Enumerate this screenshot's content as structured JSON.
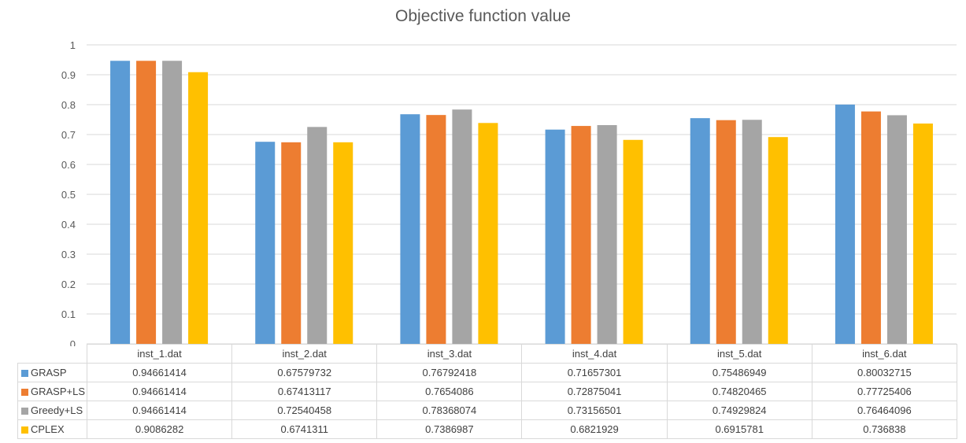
{
  "chart_data": {
    "type": "bar",
    "title": "Objective function value",
    "xlabel": "",
    "ylabel": "",
    "ylim": [
      0,
      1
    ],
    "yticks": [
      "0",
      "0.1",
      "0.2",
      "0.3",
      "0.4",
      "0.5",
      "0.6",
      "0.7",
      "0.8",
      "0.9",
      "1"
    ],
    "grid": true,
    "legend": "data-table",
    "categories": [
      "inst_1.dat",
      "inst_2.dat",
      "inst_3.dat",
      "inst_4.dat",
      "inst_5.dat",
      "inst_6.dat"
    ],
    "series": [
      {
        "name": "GRASP",
        "color": "#5b9bd5",
        "values": [
          0.94661414,
          0.67579732,
          0.76792418,
          0.71657301,
          0.75486949,
          0.80032715
        ],
        "labels": [
          "0.94661414",
          "0.67579732",
          "0.76792418",
          "0.71657301",
          "0.75486949",
          "0.80032715"
        ]
      },
      {
        "name": "GRASP+LS",
        "color": "#ed7d31",
        "values": [
          0.94661414,
          0.67413117,
          0.7654086,
          0.72875041,
          0.74820465,
          0.77725406
        ],
        "labels": [
          "0.94661414",
          "0.67413117",
          "0.7654086",
          "0.72875041",
          "0.74820465",
          "0.77725406"
        ]
      },
      {
        "name": "Greedy+LS",
        "color": "#a5a5a5",
        "values": [
          0.94661414,
          0.72540458,
          0.78368074,
          0.73156501,
          0.74929824,
          0.76464096
        ],
        "labels": [
          "0.94661414",
          "0.72540458",
          "0.78368074",
          "0.73156501",
          "0.74929824",
          "0.76464096"
        ]
      },
      {
        "name": "CPLEX",
        "color": "#ffc000",
        "values": [
          0.9086282,
          0.6741311,
          0.7386987,
          0.6821929,
          0.6915781,
          0.736838
        ],
        "labels": [
          "0.9086282",
          "0.6741311",
          "0.7386987",
          "0.6821929",
          "0.6915781",
          "0.736838"
        ]
      }
    ]
  }
}
